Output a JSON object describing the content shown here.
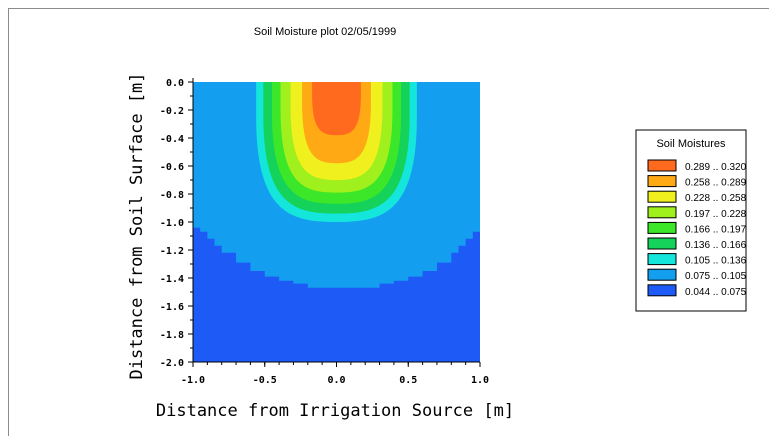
{
  "chart_data": {
    "type": "heatmap",
    "title": "Soil Moisture plot 02/05/1999",
    "xlabel": "Distance from Irrigation Source [m]",
    "ylabel": "Distance from Soil Surface [m]",
    "xlim": [
      -1.0,
      1.0
    ],
    "ylim": [
      -2.0,
      0.0
    ],
    "x_ticks": [
      "-1.0",
      "-0.5",
      "0.0",
      "0.5",
      "1.0"
    ],
    "x_tick_values": [
      -1.0,
      -0.5,
      0.0,
      0.5,
      1.0
    ],
    "y_ticks": [
      "0.0",
      "-0.2",
      "-0.4",
      "-0.6",
      "-0.8",
      "-1.0",
      "-1.2",
      "-1.4",
      "-1.6",
      "-1.8",
      "-2.0"
    ],
    "y_tick_values": [
      0.0,
      -0.2,
      -0.4,
      -0.6,
      -0.8,
      -1.0,
      -1.2,
      -1.4,
      -1.6,
      -1.8,
      -2.0
    ],
    "legend": {
      "title": "Soil Moistures",
      "position": "right",
      "entries": [
        {
          "label": "0.289 .. 0.320",
          "color": "#ff6a1e"
        },
        {
          "label": "0.258 .. 0.289",
          "color": "#ffaa14"
        },
        {
          "label": "0.228 .. 0.258",
          "color": "#f0f01e"
        },
        {
          "label": "0.197 .. 0.228",
          "color": "#a0f01e"
        },
        {
          "label": "0.166 .. 0.197",
          "color": "#3ce628"
        },
        {
          "label": "0.136 .. 0.166",
          "color": "#14d25a"
        },
        {
          "label": "0.105 .. 0.136",
          "color": "#14e6dc"
        },
        {
          "label": "0.075 .. 0.105",
          "color": "#149ef0"
        },
        {
          "label": "0.044 .. 0.075",
          "color": "#1e5af5"
        }
      ]
    },
    "moisture_zones": [
      {
        "range": "0.075 .. 0.105",
        "color": "#149ef0",
        "center_x": 0.0,
        "top_y": 0.0,
        "half_width": 0.62,
        "bottom_y": -1.06
      },
      {
        "range": "0.105 .. 0.136",
        "color": "#14e6dc",
        "center_x": 0.0,
        "top_y": 0.0,
        "half_width": 0.56,
        "bottom_y": -1.0
      },
      {
        "range": "0.136 .. 0.166",
        "color": "#14d25a",
        "center_x": 0.0,
        "top_y": 0.0,
        "half_width": 0.51,
        "bottom_y": -0.94
      },
      {
        "range": "0.166 .. 0.197",
        "color": "#3ce628",
        "center_x": 0.0,
        "top_y": 0.0,
        "half_width": 0.45,
        "bottom_y": -0.87
      },
      {
        "range": "0.197 .. 0.228",
        "color": "#a0f01e",
        "center_x": 0.0,
        "top_y": 0.0,
        "half_width": 0.39,
        "bottom_y": -0.79
      },
      {
        "range": "0.228 .. 0.258",
        "color": "#f0f01e",
        "center_x": 0.0,
        "top_y": 0.0,
        "half_width": 0.32,
        "bottom_y": -0.7
      },
      {
        "range": "0.258 .. 0.289",
        "color": "#ffaa14",
        "center_x": 0.0,
        "top_y": 0.0,
        "half_width": 0.24,
        "bottom_y": -0.58
      },
      {
        "range": "0.289 .. 0.320",
        "color": "#ff6a1e",
        "center_x": 0.0,
        "top_y": 0.0,
        "half_width": 0.17,
        "bottom_y": -0.38
      }
    ],
    "wet_front_boundary": [
      [
        -1.0,
        -1.04
      ],
      [
        -0.95,
        -1.07
      ],
      [
        -0.9,
        -1.12
      ],
      [
        -0.85,
        -1.17
      ],
      [
        -0.8,
        -1.22
      ],
      [
        -0.7,
        -1.29
      ],
      [
        -0.6,
        -1.35
      ],
      [
        -0.5,
        -1.39
      ],
      [
        -0.4,
        -1.42
      ],
      [
        -0.3,
        -1.44
      ],
      [
        -0.2,
        -1.47
      ],
      [
        0.0,
        -1.47
      ],
      [
        0.2,
        -1.47
      ],
      [
        0.3,
        -1.44
      ],
      [
        0.4,
        -1.42
      ],
      [
        0.5,
        -1.39
      ],
      [
        0.6,
        -1.35
      ],
      [
        0.7,
        -1.29
      ],
      [
        0.8,
        -1.22
      ],
      [
        0.85,
        -1.17
      ],
      [
        0.9,
        -1.12
      ],
      [
        0.95,
        -1.07
      ],
      [
        1.0,
        -1.04
      ]
    ],
    "background_color": "#1e5af5",
    "upper_zone_color": "#149ef0"
  }
}
